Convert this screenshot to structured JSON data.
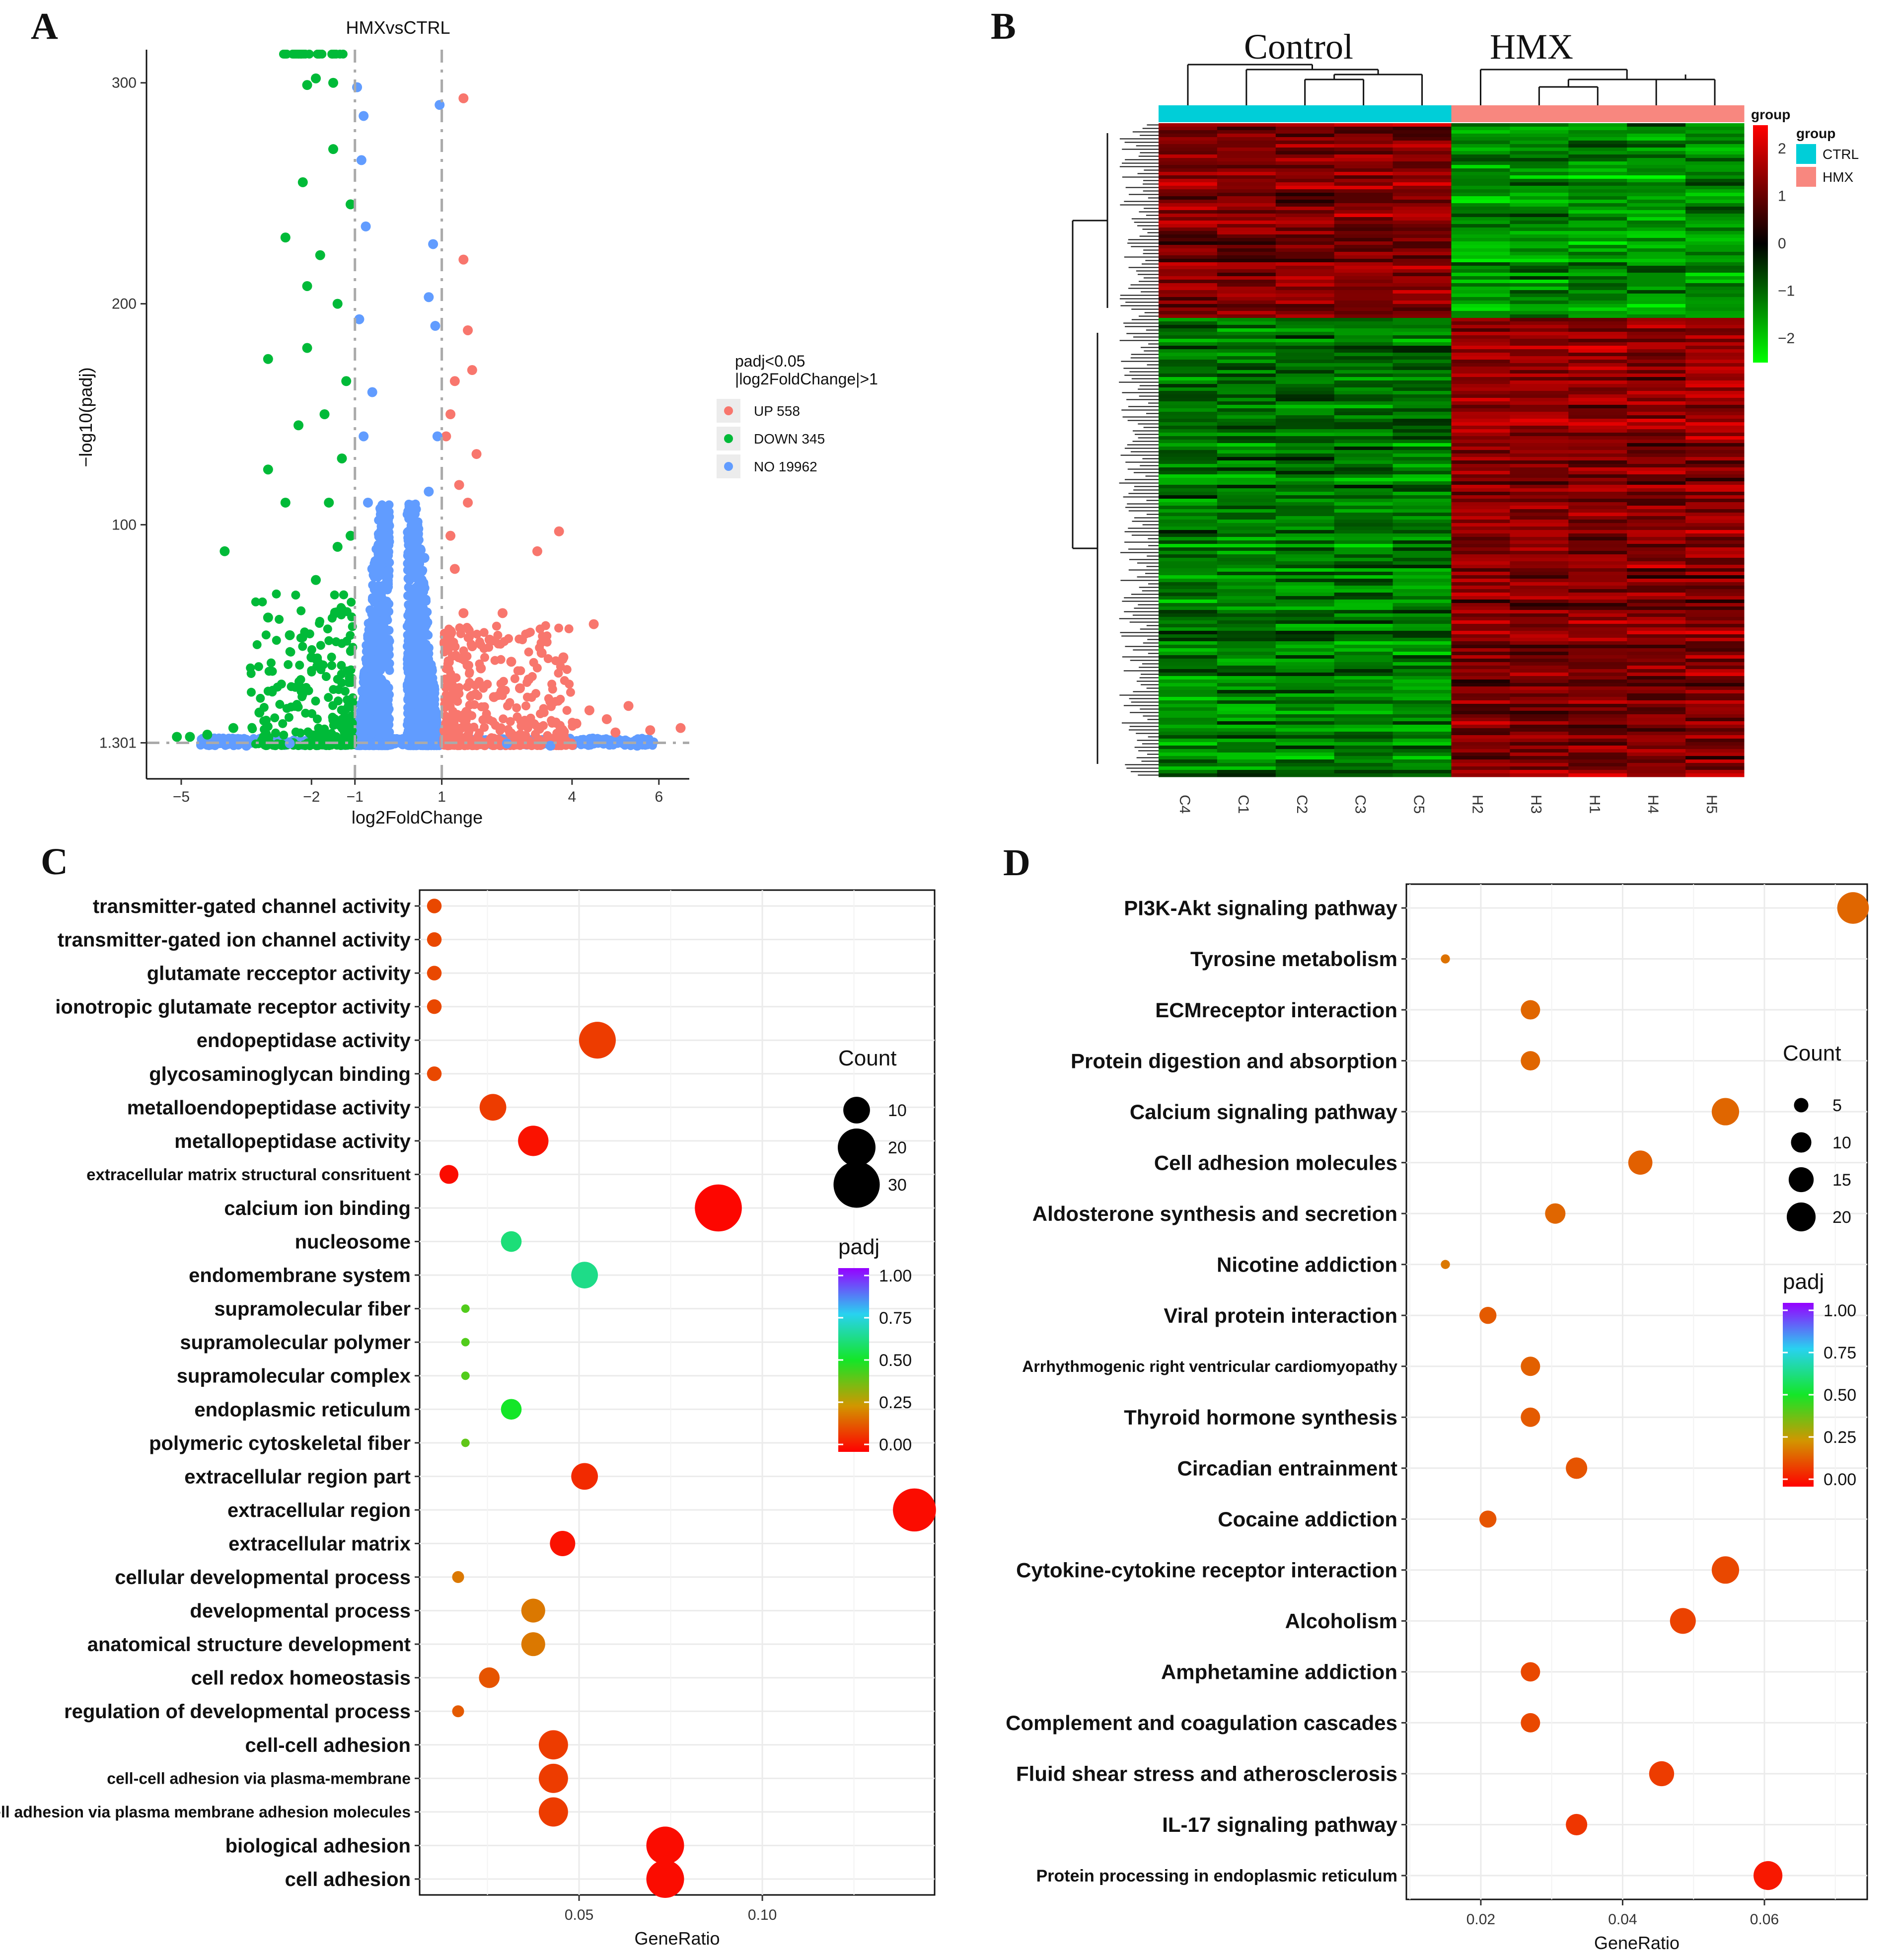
{
  "panel_labels": [
    "A",
    "B",
    "C",
    "D"
  ],
  "chart_data": [
    {
      "panel": "A",
      "type": "scatter",
      "title": "HMXvsCTRL",
      "xlabel": "log2FoldChange",
      "ylabel": "−log10(padj)",
      "xlim": [
        -5.8,
        6.7
      ],
      "ylim": [
        -15,
        315
      ],
      "x_ticks": [
        {
          "v": -5,
          "label": "−5"
        },
        {
          "v": -2,
          "label": "−2"
        },
        {
          "v": -1,
          "label": "−1"
        },
        {
          "v": 1,
          "label": "1"
        },
        {
          "v": 4,
          "label": "4"
        },
        {
          "v": 6,
          "label": "6"
        }
      ],
      "y_ticks": [
        {
          "v": 1.301,
          "label": "1.301"
        },
        {
          "v": 100,
          "label": "100"
        },
        {
          "v": 200,
          "label": "200"
        },
        {
          "v": 300,
          "label": "300"
        }
      ],
      "thresholds": {
        "x": [
          -1,
          1
        ],
        "y": 1.301
      },
      "legend": {
        "title_lines": [
          "padj<0.05",
          "|log2FoldChange|>1"
        ],
        "entries": [
          {
            "label": "UP 558",
            "color": "#F8766D"
          },
          {
            "label": "DOWN 345",
            "color": "#00BA38"
          },
          {
            "label": "NO 19962",
            "color": "#619CFF"
          }
        ],
        "position": "right"
      },
      "series": [
        {
          "name": "UP 558",
          "color": "#F8766D",
          "points": [
            [
              1.5,
              322
            ],
            [
              1.5,
              293
            ],
            [
              1.5,
              220
            ],
            [
              1.6,
              188
            ],
            [
              1.7,
              170
            ],
            [
              1.3,
              165
            ],
            [
              1.8,
              132
            ],
            [
              1.2,
              150
            ],
            [
              1.1,
              140
            ],
            [
              1.4,
              118
            ],
            [
              1.6,
              110
            ],
            [
              3.7,
              97
            ],
            [
              3.2,
              88
            ],
            [
              4.5,
              55
            ],
            [
              3.8,
              40
            ],
            [
              3.3,
              42
            ],
            [
              5.3,
              18
            ],
            [
              6.5,
              8
            ],
            [
              5.8,
              7
            ],
            [
              4.4,
              16
            ],
            [
              4.8,
              12
            ],
            [
              2.6,
              38
            ],
            [
              3.0,
              30
            ],
            [
              2.2,
              22
            ],
            [
              1.9,
              35
            ],
            [
              1.5,
              60
            ],
            [
              1.3,
              80
            ],
            [
              1.2,
              95
            ],
            [
              2.1,
              48
            ],
            [
              2.8,
              26
            ],
            [
              3.5,
              20
            ],
            [
              4.1,
              10
            ],
            [
              5.0,
              6
            ],
            [
              2.4,
              60
            ],
            [
              1.7,
              45
            ]
          ]
        },
        {
          "name": "DOWN 345",
          "color": "#00BA38",
          "points": [
            [
              -1.3,
              318
            ],
            [
              -2.0,
              318
            ],
            [
              -1.7,
              318
            ],
            [
              -2.5,
              318
            ],
            [
              -1.5,
              300
            ],
            [
              -1.9,
              302
            ],
            [
              -2.1,
              299
            ],
            [
              -2.2,
              255
            ],
            [
              -1.5,
              270
            ],
            [
              -2.6,
              230
            ],
            [
              -1.1,
              245
            ],
            [
              -2.1,
              208
            ],
            [
              -1.8,
              222
            ],
            [
              -3.0,
              175
            ],
            [
              -2.1,
              180
            ],
            [
              -2.3,
              145
            ],
            [
              -3.0,
              125
            ],
            [
              -4.0,
              88
            ],
            [
              -2.6,
              110
            ],
            [
              -1.3,
              130
            ],
            [
              -1.7,
              150
            ],
            [
              -1.2,
              165
            ],
            [
              -1.4,
              90
            ],
            [
              -1.9,
              75
            ],
            [
              -2.5,
              50
            ],
            [
              -3.2,
              15
            ],
            [
              -3.8,
              8
            ],
            [
              -4.4,
              5
            ],
            [
              -4.8,
              4
            ],
            [
              -5.1,
              4
            ],
            [
              -3.0,
              58
            ],
            [
              -2.0,
              40
            ],
            [
              -1.6,
              110
            ],
            [
              -1.4,
              200
            ],
            [
              -1.1,
              95
            ]
          ]
        },
        {
          "name": "NO 19962",
          "color": "#619CFF",
          "points": [
            [
              -0.95,
              298
            ],
            [
              -0.8,
              285
            ],
            [
              -0.85,
              265
            ],
            [
              -0.75,
              235
            ],
            [
              -0.9,
              193
            ],
            [
              -0.6,
              160
            ],
            [
              -0.8,
              140
            ],
            [
              -0.7,
              110
            ],
            [
              -0.6,
              80
            ],
            [
              -0.5,
              50
            ],
            [
              -0.4,
              30
            ],
            [
              -0.3,
              15
            ],
            [
              0.95,
              290
            ],
            [
              0.8,
              227
            ],
            [
              0.7,
              203
            ],
            [
              0.85,
              190
            ],
            [
              0.9,
              140
            ],
            [
              0.7,
              115
            ],
            [
              0.6,
              85
            ],
            [
              0.5,
              55
            ],
            [
              0.4,
              30
            ],
            [
              0.3,
              12
            ],
            [
              0.1,
              3
            ],
            [
              -0.1,
              3
            ],
            [
              2.5,
              1
            ],
            [
              3.5,
              0
            ],
            [
              -2.5,
              1
            ],
            [
              -3.5,
              0
            ],
            [
              4.5,
              1
            ],
            [
              5.5,
              0
            ]
          ]
        }
      ]
    },
    {
      "panel": "B",
      "type": "heatmap",
      "column_labels": [
        "C4",
        "C1",
        "C2",
        "C3",
        "C5",
        "H2",
        "H3",
        "H1",
        "H4",
        "H5"
      ],
      "group_titles": [
        "Control",
        "HMX"
      ],
      "group_labels": [
        "CTRL",
        "CTRL",
        "CTRL",
        "CTRL",
        "CTRL",
        "HMX",
        "HMX",
        "HMX",
        "HMX",
        "HMX"
      ],
      "group_legend": {
        "title": "group",
        "entries": [
          {
            "label": "CTRL",
            "color": "#00CED8"
          },
          {
            "label": "HMX",
            "color": "#F8877F"
          }
        ]
      },
      "color_scale": {
        "min": -2.5,
        "max": 2.5,
        "ticks": [
          {
            "v": 2,
            "label": "2"
          },
          {
            "v": 1,
            "label": "1"
          },
          {
            "v": 0,
            "label": "0"
          },
          {
            "v": -1,
            "label": "−1"
          },
          {
            "v": -2,
            "label": "−2"
          }
        ],
        "low_color": "#00FF00",
        "mid_color": "#000000",
        "high_color": "#FF0000"
      },
      "row_blocks": [
        {
          "rows": 0.3,
          "ctrl": 1.3,
          "hmx": -1.4
        },
        {
          "rows": 0.7,
          "ctrl": -1.2,
          "hmx": 1.3
        }
      ]
    },
    {
      "panel": "C",
      "type": "scatter",
      "subtype": "dot",
      "xlabel": "GeneRatio",
      "xlim": [
        0.0065,
        0.147
      ],
      "x_ticks": [
        {
          "v": 0.05,
          "label": "0.05"
        },
        {
          "v": 0.1,
          "label": "0.10"
        }
      ],
      "size_legend": {
        "title": "Count",
        "values": [
          10,
          20,
          30
        ]
      },
      "color_legend": {
        "title": "padj",
        "ticks": [
          "1.00",
          "0.75",
          "0.50",
          "0.25",
          "0.00"
        ],
        "range": [
          0,
          1
        ]
      },
      "categories": [
        "transmitter-gated channel activity",
        "transmitter-gated ion channel activity",
        "glutamate recceptor activity",
        "ionotropic glutamate receptor activity",
        "endopeptidase activity",
        "glycosaminoglycan binding",
        "metalloendopeptidase activity",
        "metallopeptidase activity",
        "extracellular matrix structural consrituent",
        "calcium ion binding",
        "nucleosome",
        "endomembrane system",
        "supramolecular fiber",
        "supramolecular polymer",
        "supramolecular complex",
        "endoplasmic reticulum",
        "polymeric cytoskeletal fiber",
        "extracellular region part",
        "extracellular region",
        "extracellular matrix",
        "cellular developmental process",
        "developmental process",
        "anatomical structure development",
        "cell redox homeostasis",
        "regulation of developmental process",
        "cell-cell adhesion",
        "cell-cell adhesion via plasma-membrane",
        "homophilic cell adhesion via plasma membrane adhesion molecules",
        "biological adhesion",
        "cell adhesion"
      ],
      "gene_ratio": [
        0.0105,
        0.0105,
        0.0105,
        0.0105,
        0.055,
        0.0105,
        0.0265,
        0.0375,
        0.0145,
        0.088,
        0.0315,
        0.0515,
        0.019,
        0.019,
        0.019,
        0.0315,
        0.019,
        0.0515,
        0.1415,
        0.0455,
        0.017,
        0.0375,
        0.0375,
        0.0255,
        0.017,
        0.043,
        0.043,
        0.043,
        0.0735,
        0.0735
      ],
      "count": [
        3,
        3,
        3,
        3,
        19,
        3,
        10,
        13,
        5,
        31,
        6,
        10,
        1,
        1,
        1,
        6,
        1,
        10,
        26,
        9,
        2,
        8,
        8,
        6,
        2,
        12,
        12,
        12,
        20,
        20
      ],
      "padj": [
        0.12,
        0.12,
        0.12,
        0.12,
        0.1,
        0.12,
        0.1,
        0.03,
        0.02,
        0.01,
        0.6,
        0.62,
        0.42,
        0.42,
        0.42,
        0.5,
        0.4,
        0.07,
        0.02,
        0.03,
        0.2,
        0.2,
        0.2,
        0.14,
        0.15,
        0.1,
        0.1,
        0.1,
        0.02,
        0.02
      ]
    },
    {
      "panel": "D",
      "type": "scatter",
      "subtype": "dot",
      "xlabel": "GeneRatio",
      "xlim": [
        0.0095,
        0.0745
      ],
      "x_ticks": [
        {
          "v": 0.02,
          "label": "0.02"
        },
        {
          "v": 0.04,
          "label": "0.04"
        },
        {
          "v": 0.06,
          "label": "0.06"
        }
      ],
      "size_legend": {
        "title": "Count",
        "values": [
          5,
          10,
          15,
          20
        ]
      },
      "color_legend": {
        "title": "padj",
        "ticks": [
          "1.00",
          "0.75",
          "0.50",
          "0.25",
          "0.00"
        ],
        "range": [
          0,
          1
        ]
      },
      "categories": [
        "PI3K-Akt signaling pathway",
        "Tyrosine metabolism",
        "ECMreceptor interaction",
        "Protein digestion and absorption",
        "Calcium signaling pathway",
        "Cell adhesion molecules",
        "Aldosterone synthesis and secretion",
        "Nicotine addiction",
        "Viral protein interaction",
        "Arrhythmogenic right ventricular cardiomyopathy",
        "Thyroid hormone synthesis",
        "Circadian entrainment",
        "Cocaine addiction",
        "Cytokine-cytokine receptor interaction",
        "Alcoholism",
        "Amphetamine addiction",
        "Complement and coagulation cascades",
        "Fluid shear stress and atherosclerosis",
        "IL-17 signaling pathway",
        "Protein processing in endoplasmic reticulum"
      ],
      "gene_ratio": [
        0.0725,
        0.015,
        0.027,
        0.027,
        0.0545,
        0.0425,
        0.0305,
        0.015,
        0.021,
        0.027,
        0.027,
        0.0335,
        0.021,
        0.0545,
        0.0485,
        0.027,
        0.027,
        0.0455,
        0.0335,
        0.0605
      ],
      "count": [
        24,
        2,
        9,
        9,
        18,
        14,
        10,
        2,
        7,
        9,
        9,
        11,
        7,
        18,
        16,
        9,
        9,
        15,
        11,
        20
      ],
      "padj": [
        0.17,
        0.19,
        0.17,
        0.17,
        0.17,
        0.16,
        0.17,
        0.2,
        0.15,
        0.16,
        0.15,
        0.14,
        0.14,
        0.12,
        0.11,
        0.12,
        0.12,
        0.1,
        0.09,
        0.04
      ]
    }
  ]
}
